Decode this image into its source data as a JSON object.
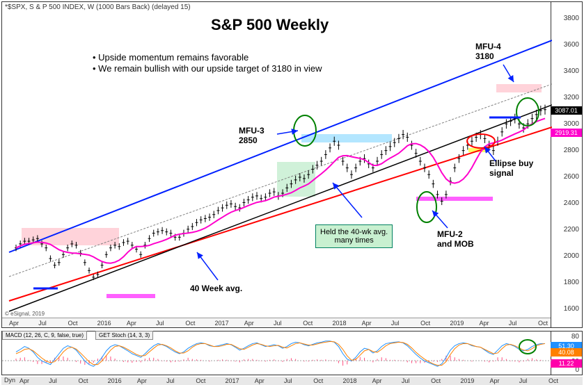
{
  "header": {
    "symbol": "*$SPX, S & P 500 INDEX, W (1000 Bars Back) (delayed 15)"
  },
  "main": {
    "title": "S&P 500 Weekly",
    "title_fontsize": 22,
    "bullets": [
      "• Upside momentum remains favorable",
      "• We remain bullish with our upside target of 3180 in view"
    ],
    "annotations": {
      "mfu4": {
        "label": "MFU-4",
        "value": "3180"
      },
      "mfu3": {
        "label": "MFU-3",
        "value": "2850"
      },
      "ellipse_buy": "Ellipse buy\nsignal",
      "held40wk": "Held the 40-wk avg.\nmany times",
      "mfu2mob": "MFU-2\nand MOB",
      "avg40wk": "40 Week avg."
    },
    "y_axis": {
      "min": 1600,
      "max": 3800,
      "ticks": [
        1600,
        1800,
        2000,
        2200,
        2400,
        2600,
        2800,
        3000,
        3200,
        3400,
        3600,
        3800
      ]
    },
    "x_axis": {
      "labels": [
        "Apr",
        "Jul",
        "Oct",
        "2016",
        "Apr",
        "Jul",
        "Oct",
        "2017",
        "Apr",
        "Jul",
        "Oct",
        "2018",
        "Apr",
        "Jul",
        "Oct",
        "2019",
        "Apr",
        "Jul",
        "Oct"
      ]
    },
    "price_tags": [
      {
        "value": "3087.01",
        "bg": "#000000"
      },
      {
        "value": "2919.31",
        "bg": "#ff00cc"
      }
    ],
    "colors": {
      "upper_channel": "#0020ff",
      "lower_channel": "#ff0000",
      "ma40": "#ff00cc",
      "midline": "#808080",
      "ellipse": "#008000",
      "arrow": "#0020ff",
      "callout_bg": "#c8f0d0",
      "highlight_pink": "#ffc0cb",
      "highlight_green": "#b0e8c0",
      "highlight_cyan": "#a0e0ff",
      "highlight_magenta": "#ff60ff",
      "highlight_yellow": "#ffff60"
    },
    "copyright": "© eSignal, 2019"
  },
  "indicator": {
    "tabs": [
      "MACD (12, 26, C, 9, false, true)",
      "GET Stoch (14, 3, 3)"
    ],
    "y_ticks": [
      0,
      20,
      40,
      60,
      80
    ],
    "tags": [
      {
        "value": "51.30",
        "bg": "#2090ff"
      },
      {
        "value": "40.08",
        "bg": "#ff8000"
      },
      {
        "value": "11.22",
        "bg": "#ff00aa"
      }
    ],
    "colors": {
      "fast": "#2090ff",
      "slow": "#ff8000",
      "hist": "#ff5080",
      "zeroline": "#808080"
    }
  },
  "bottom": {
    "label": "Dyn"
  },
  "price_series": {
    "type": "line",
    "comment": "weekly close approximations 2015-2019",
    "points": [
      2050,
      2080,
      2100,
      2100,
      2110,
      2120,
      2080,
      2050,
      1970,
      1920,
      1940,
      2000,
      2050,
      2080,
      2070,
      2010,
      1940,
      1880,
      1830,
      1850,
      1920,
      2000,
      2050,
      2070,
      2060,
      2090,
      2100,
      2070,
      2040,
      2000,
      2070,
      2120,
      2160,
      2170,
      2180,
      2170,
      2160,
      2130,
      2130,
      2160,
      2190,
      2210,
      2240,
      2260,
      2270,
      2280,
      2300,
      2330,
      2350,
      2370,
      2380,
      2360,
      2350,
      2390,
      2410,
      2430,
      2440,
      2420,
      2430,
      2460,
      2470,
      2440,
      2460,
      2500,
      2530,
      2560,
      2580,
      2570,
      2600,
      2640,
      2670,
      2700,
      2750,
      2800,
      2850,
      2820,
      2700,
      2650,
      2600,
      2650,
      2700,
      2720,
      2680,
      2650,
      2700,
      2750,
      2780,
      2810,
      2840,
      2870,
      2900,
      2880,
      2820,
      2760,
      2700,
      2650,
      2600,
      2530,
      2450,
      2400,
      2450,
      2550,
      2650,
      2720,
      2780,
      2820,
      2850,
      2880,
      2900,
      2870,
      2820,
      2780,
      2850,
      2920,
      2980,
      3000,
      3020,
      2980,
      2950,
      2980,
      3020,
      3050,
      3080,
      3087
    ]
  },
  "stoch_series": {
    "fast": [
      55,
      62,
      70,
      65,
      55,
      40,
      30,
      25,
      20,
      35,
      50,
      65,
      72,
      68,
      60,
      45,
      30,
      20,
      15,
      25,
      40,
      58,
      70,
      75,
      72,
      65,
      58,
      50,
      45,
      40,
      50,
      62,
      72,
      78,
      75,
      70,
      62,
      55,
      50,
      55,
      65,
      72,
      78,
      80,
      78,
      72,
      70,
      72,
      75,
      78,
      75,
      68,
      60,
      65,
      72,
      78,
      80,
      75,
      70,
      72,
      75,
      72,
      65,
      70,
      78,
      82,
      80,
      75,
      72,
      76,
      80,
      82,
      85,
      85,
      82,
      70,
      50,
      35,
      30,
      40,
      55,
      65,
      62,
      52,
      58,
      70,
      78,
      80,
      82,
      83,
      80,
      72,
      60,
      48,
      38,
      30,
      25,
      20,
      15,
      22,
      40,
      60,
      72,
      78,
      80,
      78,
      72,
      70,
      68,
      60,
      52,
      48,
      60,
      72,
      78,
      75,
      70,
      62,
      58,
      62,
      70,
      75,
      78,
      78
    ],
    "slow": [
      50,
      55,
      62,
      64,
      58,
      48,
      38,
      30,
      25,
      28,
      40,
      55,
      65,
      68,
      63,
      52,
      40,
      28,
      20,
      20,
      30,
      45,
      60,
      70,
      72,
      68,
      62,
      55,
      48,
      44,
      45,
      55,
      65,
      74,
      76,
      72,
      66,
      58,
      52,
      52,
      58,
      68,
      75,
      78,
      78,
      74,
      70,
      70,
      72,
      76,
      76,
      70,
      64,
      62,
      68,
      74,
      78,
      76,
      72,
      70,
      72,
      73,
      68,
      66,
      72,
      78,
      80,
      77,
      74,
      74,
      77,
      80,
      82,
      84,
      83,
      76,
      62,
      44,
      32,
      34,
      46,
      58,
      62,
      56,
      54,
      62,
      72,
      78,
      80,
      82,
      81,
      76,
      66,
      54,
      44,
      35,
      28,
      22,
      18,
      18,
      28,
      48,
      64,
      74,
      78,
      78,
      74,
      70,
      68,
      62,
      56,
      50,
      52,
      64,
      74,
      76,
      72,
      66,
      60,
      58,
      64,
      72,
      76,
      78
    ]
  }
}
